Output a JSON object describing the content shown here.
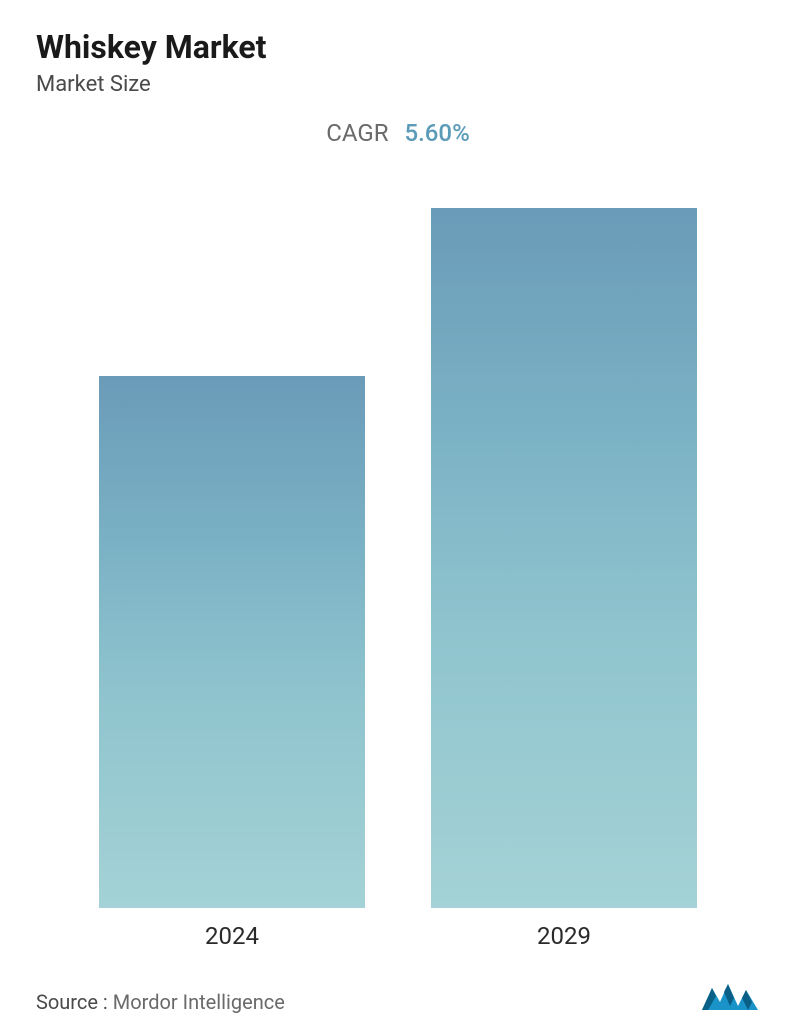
{
  "header": {
    "title": "Whiskey Market",
    "subtitle": "Market Size"
  },
  "cagr": {
    "label": "CAGR",
    "value": "5.60%",
    "label_color": "#6a6a6a",
    "value_color": "#5b9bb8",
    "fontsize": 24
  },
  "chart": {
    "type": "bar",
    "categories": [
      "2024",
      "2029"
    ],
    "values": [
      76,
      100
    ],
    "max_height": 700,
    "bar_gradient_top": "#6a9bb8",
    "bar_gradient_mid1": "#7ab0c4",
    "bar_gradient_mid2": "#8fc4ce",
    "bar_gradient_bottom": "#a4d2d6",
    "background_color": "#ffffff",
    "axis_label_fontsize": 24,
    "axis_label_color": "#2a2a2a",
    "bar_width_pct": 40
  },
  "footer": {
    "source_label": "Source :",
    "source_value": "Mordor Intelligence",
    "logo_primary_color": "#1993c8",
    "logo_accent_color": "#0a5f87"
  },
  "typography": {
    "title_fontsize": 32,
    "title_weight": 700,
    "title_color": "#1a1a1a",
    "subtitle_fontsize": 22,
    "subtitle_color": "#4a4a4a",
    "source_fontsize": 20,
    "source_color": "#6a6a6a"
  }
}
